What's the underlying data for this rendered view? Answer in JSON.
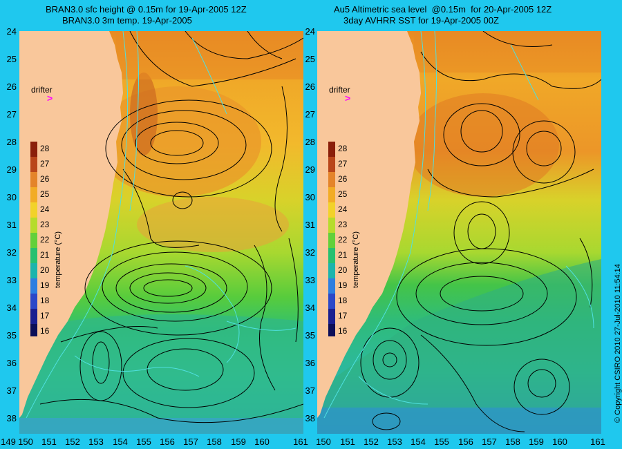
{
  "left_panel": {
    "title_line1": "BRAN3.0 sfc height @ 0.15m for 19-Apr-2005 12Z",
    "title_line2": "BRAN3.0 3m temp. 19-Apr-2005",
    "drifter_label": "drifter",
    "colorbar_label": "temperature (°C)"
  },
  "right_panel": {
    "title_line1": "Au5 Altimetric sea level  @0.15m  for 20-Apr-2005 12Z",
    "title_line2": "3day AVHRR SST for 19-Apr-2005 00Z",
    "drifter_label": "drifter",
    "colorbar_label": "temperature (°C)"
  },
  "y_axis_labels": [
    "24",
    "25",
    "26",
    "27",
    "28",
    "29",
    "30",
    "31",
    "32",
    "33",
    "34",
    "35",
    "36",
    "37",
    "38"
  ],
  "x_axis_labels": [
    "149",
    "150",
    "151",
    "152",
    "153",
    "154",
    "155",
    "156",
    "157",
    "158",
    "159",
    "160",
    "161"
  ],
  "colorbar_ticks": [
    "28",
    "27",
    "26",
    "25",
    "24",
    "23",
    "22",
    "21",
    "20",
    "19",
    "18",
    "17",
    "16"
  ],
  "copyright": "© Copyright CSIRO 2010   27-Jul-2010 11:54:14",
  "colors": {
    "background": "#1fc8ee",
    "land": "#f9c79b",
    "drifter": "#ff00ff",
    "contour": "#000000",
    "contour_fine": "#4fe0e0"
  }
}
